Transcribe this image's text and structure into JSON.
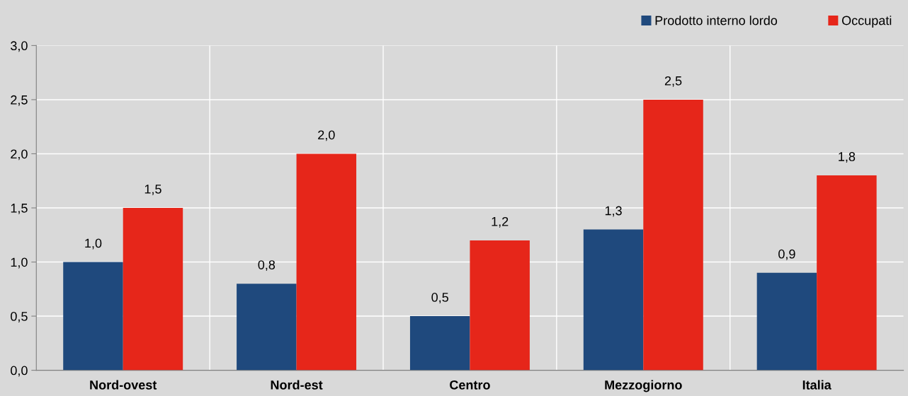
{
  "chart_data": {
    "type": "bar",
    "categories": [
      "Nord-ovest",
      "Nord-est",
      "Centro",
      "Mezzogiorno",
      "Italia"
    ],
    "series": [
      {
        "name": "Prodotto interno lordo",
        "color": "#1f497d",
        "values": [
          1.0,
          0.8,
          0.5,
          1.3,
          0.9
        ],
        "value_labels": [
          "1,0",
          "0,8",
          "0,5",
          "1,3",
          "0,9"
        ]
      },
      {
        "name": "Occupati",
        "color": "#e6261a",
        "values": [
          1.5,
          2.0,
          1.2,
          2.5,
          1.8
        ],
        "value_labels": [
          "1,5",
          "2,0",
          "1,2",
          "2,5",
          "1,8"
        ]
      }
    ],
    "ylim": [
      0,
      3
    ],
    "yticks": [
      {
        "value": 0,
        "label": "0,0"
      },
      {
        "value": 0.5,
        "label": "0,5"
      },
      {
        "value": 1,
        "label": "1,0"
      },
      {
        "value": 1.5,
        "label": "1,5"
      },
      {
        "value": 2,
        "label": "2,0"
      },
      {
        "value": 2.5,
        "label": "2,5"
      },
      {
        "value": 3,
        "label": "3,0"
      }
    ],
    "grid": true,
    "legend": "top right"
  }
}
